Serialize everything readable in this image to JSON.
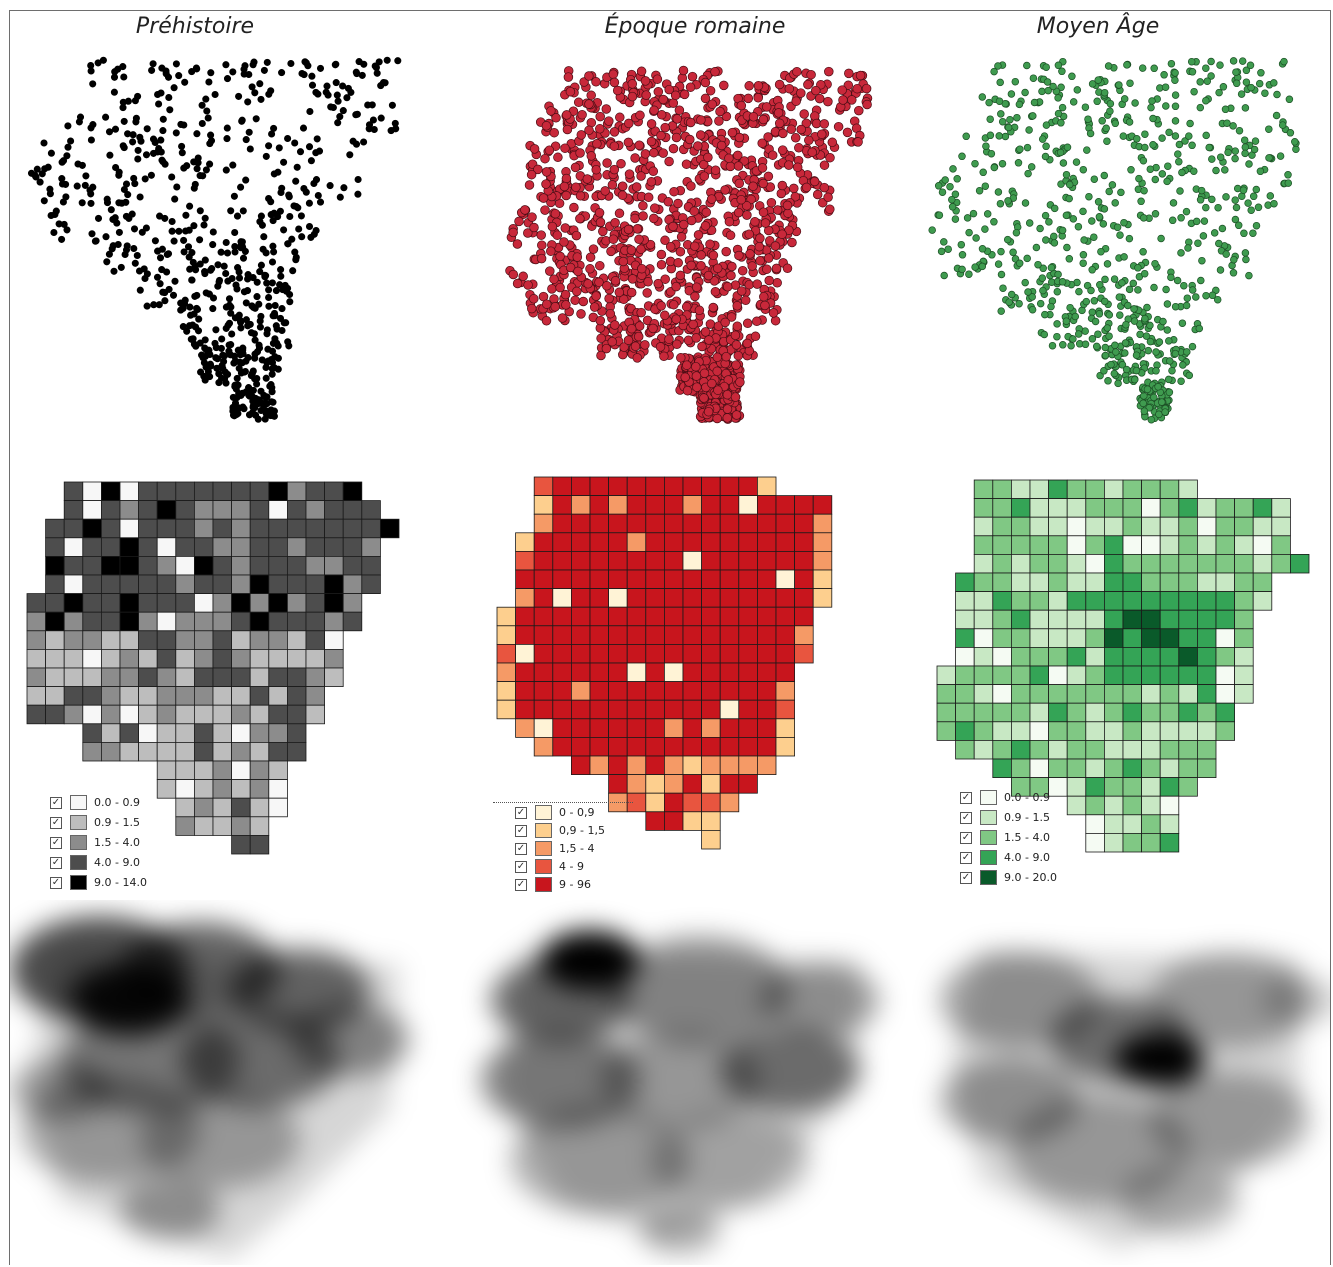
{
  "panels": [
    {
      "id": "prehistoire",
      "title": "Préhistoire",
      "point_color": "#000000",
      "point_stroke": "#000000",
      "palette": [
        "#f7f7f7",
        "#bdbdbd",
        "#8c8c8c",
        "#4d4d4d",
        "#000000"
      ],
      "legend": [
        "0.0 - 0.9",
        "0.9 - 1.5",
        "1.5 - 4.0",
        "4.0 - 9.0",
        "9.0 - 14.0"
      ]
    },
    {
      "id": "epoque-romaine",
      "title": "Époque romaine",
      "point_color": "#c8283a",
      "point_stroke": "#4a0d14",
      "palette": [
        "#fff3d6",
        "#fdcf8e",
        "#f59a66",
        "#e8553f",
        "#c8151d"
      ],
      "legend": [
        "0 - 0,9",
        "0,9 - 1,5",
        "1,5 - 4",
        "4 - 9",
        "9 - 96"
      ]
    },
    {
      "id": "moyen-age",
      "title": "Moyen Âge",
      "point_color": "#3f9b4f",
      "point_stroke": "#1c4f25",
      "palette": [
        "#f5fbf3",
        "#c8e8c4",
        "#80c884",
        "#34a456",
        "#0a5a2a"
      ],
      "legend": [
        "0.0 - 0.9",
        "0.9 - 1.5",
        "1.5 - 4.0",
        "4.0 - 9.0",
        "9.0 - 20.0"
      ]
    }
  ]
}
